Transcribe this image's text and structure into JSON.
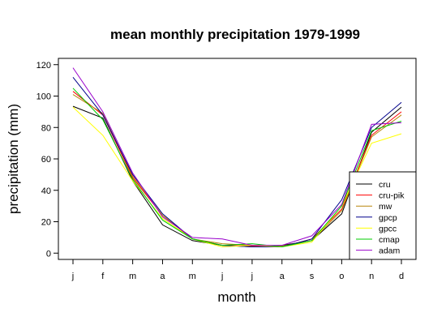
{
  "chart_data": {
    "type": "line",
    "title": "mean monthly precipitation 1979-1999",
    "xlabel": "month",
    "ylabel": "precipitation (mm)",
    "categories": [
      "j",
      "f",
      "m",
      "a",
      "m",
      "j",
      "j",
      "a",
      "s",
      "o",
      "n",
      "d"
    ],
    "ylim": [
      -4,
      124
    ],
    "yticks": [
      0,
      20,
      40,
      60,
      80,
      100,
      120
    ],
    "grid": false,
    "legend_position": "bottom-right",
    "series": [
      {
        "name": "cru",
        "color": "#000000",
        "values": [
          93.5,
          86,
          46,
          18,
          8,
          5,
          4,
          5,
          8,
          25,
          77,
          93
        ]
      },
      {
        "name": "cru-pik",
        "color": "#ff0000",
        "values": [
          103,
          88,
          48,
          24,
          9,
          5,
          4.5,
          4,
          9,
          28,
          75,
          90
        ]
      },
      {
        "name": "mw",
        "color": "#b8860b",
        "values": [
          101,
          89,
          49,
          24,
          9,
          6,
          5,
          4.5,
          8,
          27,
          74,
          88
        ]
      },
      {
        "name": "gpcp",
        "color": "#00008b",
        "values": [
          112,
          88,
          50,
          25,
          9,
          5,
          4,
          4,
          9,
          34,
          80,
          96
        ]
      },
      {
        "name": "gpcc",
        "color": "#ffff00",
        "values": [
          93,
          75,
          46,
          22,
          9,
          4,
          5,
          4,
          7,
          30,
          70,
          76
        ]
      },
      {
        "name": "cmap",
        "color": "#00cc00",
        "values": [
          105,
          85,
          47,
          21,
          9,
          5,
          6,
          4,
          8,
          30,
          78,
          84
        ]
      },
      {
        "name": "adam",
        "color": "#9900cc",
        "values": [
          118,
          90,
          51,
          23,
          10,
          9,
          5,
          5,
          11,
          31,
          82,
          83
        ]
      }
    ]
  }
}
